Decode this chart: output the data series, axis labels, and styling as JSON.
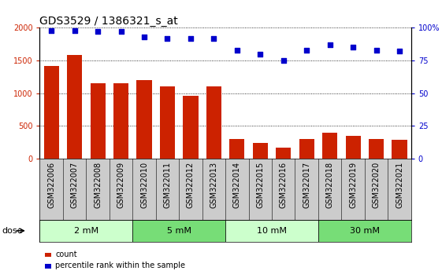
{
  "title": "GDS3529 / 1386321_s_at",
  "categories": [
    "GSM322006",
    "GSM322007",
    "GSM322008",
    "GSM322009",
    "GSM322010",
    "GSM322011",
    "GSM322012",
    "GSM322013",
    "GSM322014",
    "GSM322015",
    "GSM322016",
    "GSM322017",
    "GSM322018",
    "GSM322019",
    "GSM322020",
    "GSM322021"
  ],
  "bar_values": [
    1420,
    1590,
    1150,
    1150,
    1200,
    1100,
    960,
    1100,
    300,
    240,
    160,
    300,
    390,
    350,
    300,
    280
  ],
  "scatter_values": [
    98,
    98,
    97,
    97,
    93,
    92,
    92,
    92,
    83,
    80,
    75,
    83,
    87,
    85,
    83,
    82
  ],
  "bar_color": "#cc2200",
  "scatter_color": "#0000cc",
  "ylim_left": [
    0,
    2000
  ],
  "ylim_right": [
    0,
    100
  ],
  "yticks_left": [
    0,
    500,
    1000,
    1500,
    2000
  ],
  "yticks_right": [
    0,
    25,
    50,
    75,
    100
  ],
  "yticklabels_right": [
    "0",
    "25",
    "50",
    "75",
    "100%"
  ],
  "dose_groups": [
    {
      "label": "2 mM",
      "start": 0,
      "end": 3,
      "color": "#ccffcc"
    },
    {
      "label": "5 mM",
      "start": 4,
      "end": 7,
      "color": "#77dd77"
    },
    {
      "label": "10 mM",
      "start": 8,
      "end": 11,
      "color": "#ccffcc"
    },
    {
      "label": "30 mM",
      "start": 12,
      "end": 15,
      "color": "#77dd77"
    }
  ],
  "xlabel_dose": "dose",
  "legend_count": "count",
  "legend_pct": "percentile rank within the sample",
  "title_fontsize": 10,
  "tick_fontsize": 7,
  "label_fontsize": 7,
  "dose_fontsize": 8,
  "bg_color": "#cccccc",
  "plot_bg": "#ffffff",
  "bar_width": 0.65
}
